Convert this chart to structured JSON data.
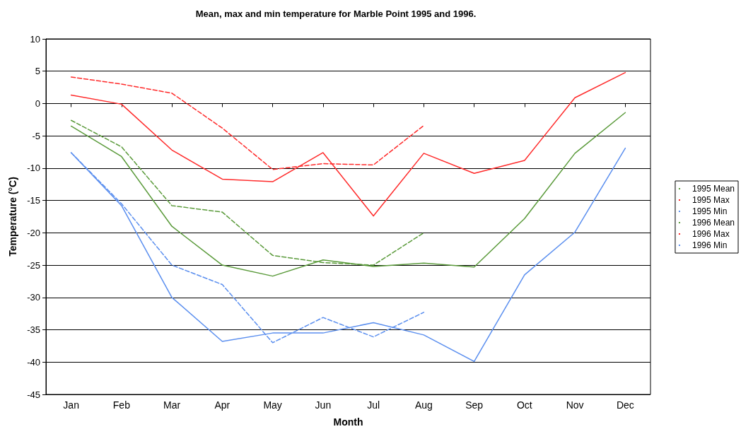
{
  "chart_data": {
    "type": "line",
    "title": "Mean, max and min temperature for Marble Point 1995 and 1996.",
    "xlabel": "Month",
    "ylabel": "Temperature (°C)",
    "categories": [
      "Jan",
      "Feb",
      "Mar",
      "Apr",
      "May",
      "Jun",
      "Jul",
      "Aug",
      "Sep",
      "Oct",
      "Nov",
      "Dec"
    ],
    "ylim": [
      -45,
      10
    ],
    "yticks": [
      -45,
      -40,
      -35,
      -30,
      -25,
      -20,
      -15,
      -10,
      -5,
      0,
      5,
      10
    ],
    "grid": "y",
    "legend": "right",
    "marker": "none",
    "series": [
      {
        "name": "1995 Mean",
        "color": "#5a9a3a",
        "line_style": "solid",
        "values": [
          -3.5,
          -8.2,
          -19,
          -25,
          -26.7,
          -24.2,
          -25.2,
          -24.7,
          -25.3,
          -17.8,
          -7.7,
          -1.4
        ]
      },
      {
        "name": "1995 Max",
        "color": "#ff2a2a",
        "line_style": "solid",
        "values": [
          1.3,
          -0.1,
          -7.2,
          -11.7,
          -12.1,
          -7.6,
          -17.4,
          -7.7,
          -10.8,
          -8.8,
          0.9,
          4.8
        ]
      },
      {
        "name": "1995 Min",
        "color": "#5b8fef",
        "line_style": "solid",
        "values": [
          -7.6,
          -15.8,
          -30,
          -36.8,
          -35.5,
          -35.5,
          -33.9,
          -35.8,
          -39.9,
          -26.5,
          -19.9,
          -6.9
        ]
      },
      {
        "name": "1996 Mean",
        "color": "#5a9a3a",
        "line_style": "dashed",
        "values": [
          -2.6,
          -6.7,
          -15.8,
          -16.8,
          -23.5,
          -24.6,
          -25,
          -20,
          null,
          null,
          null,
          null
        ]
      },
      {
        "name": "1996 Max",
        "color": "#ff2a2a",
        "line_style": "dashed",
        "values": [
          4.1,
          3.0,
          1.6,
          -3.8,
          -10.2,
          -9.3,
          -9.5,
          -3.4,
          null,
          null,
          null,
          null
        ]
      },
      {
        "name": "1996 Min",
        "color": "#5b8fef",
        "line_style": "dashed",
        "values": [
          -7.6,
          -15.5,
          -25,
          -28,
          -37,
          -33.1,
          -36.1,
          -32.3,
          null,
          null,
          null,
          null
        ]
      }
    ]
  }
}
